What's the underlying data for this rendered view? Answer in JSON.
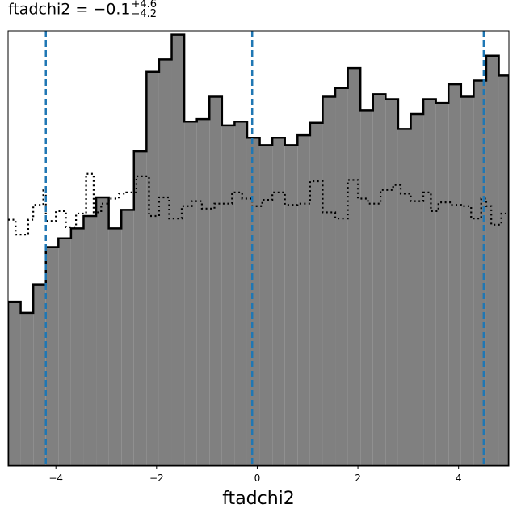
{
  "chart_data": {
    "type": "histogram",
    "title": {
      "prefix": "ftadchi2 = ",
      "value": "−0.1",
      "upper": "+4.6",
      "lower": "−4.2"
    },
    "xlabel": "ftadchi2",
    "xlim": [
      -4.95,
      5.0
    ],
    "ylim": [
      0,
      350
    ],
    "x_ticks": [
      -4,
      -2,
      0,
      2,
      4
    ],
    "x_tick_labels": [
      "−4",
      "−2",
      "0",
      "2",
      "4"
    ],
    "bin_edges": [
      -4.95,
      -4.7,
      -4.45,
      -4.2,
      -3.95,
      -3.7,
      -3.45,
      -3.2,
      -2.95,
      -2.7,
      -2.45,
      -2.2,
      -1.95,
      -1.7,
      -1.45,
      -1.2,
      -0.95,
      -0.7,
      -0.45,
      -0.2,
      0.05,
      0.3,
      0.55,
      0.8,
      1.05,
      1.3,
      1.55,
      1.8,
      2.05,
      2.3,
      2.55,
      2.8,
      3.05,
      3.3,
      3.55,
      3.8,
      4.05,
      4.3,
      4.55,
      4.8,
      5.05
    ],
    "series": [
      {
        "values": [
          132,
          123,
          146,
          176,
          183,
          191,
          201,
          216,
          191,
          206,
          253,
          317,
          327,
          347,
          277,
          279,
          297,
          274,
          277,
          264,
          258,
          264,
          258,
          266,
          276,
          297,
          304,
          320,
          286,
          299,
          295,
          271,
          283,
          295,
          292,
          307,
          297,
          310,
          330,
          314
        ],
        "style": "step-filled",
        "fill": "#808080",
        "edge": "#000000",
        "bins": [
          [
            -4.95,
            -4.7,
            132
          ],
          [
            -4.7,
            -4.45,
            123
          ],
          [
            -4.45,
            -4.2,
            146
          ],
          [
            -4.2,
            -3.95,
            176
          ],
          [
            -3.95,
            -3.7,
            183
          ],
          [
            -3.7,
            -3.45,
            191
          ],
          [
            -3.45,
            -3.2,
            201
          ],
          [
            -3.2,
            -2.95,
            216
          ],
          [
            -2.95,
            -2.7,
            191
          ],
          [
            -2.7,
            -2.45,
            206
          ],
          [
            -2.45,
            -2.2,
            253
          ],
          [
            -2.2,
            -1.95,
            317
          ],
          [
            -1.95,
            -1.7,
            327
          ],
          [
            -1.7,
            -1.45,
            347
          ],
          [
            -1.45,
            -1.2,
            277
          ],
          [
            -1.2,
            -0.95,
            279
          ],
          [
            -0.95,
            -0.7,
            297
          ],
          [
            -0.7,
            -0.45,
            274
          ],
          [
            -0.45,
            -0.2,
            277
          ],
          [
            -0.2,
            0.05,
            264
          ],
          [
            0.05,
            0.3,
            258
          ],
          [
            0.3,
            0.55,
            264
          ],
          [
            0.55,
            0.8,
            258
          ],
          [
            0.8,
            1.05,
            266
          ],
          [
            1.05,
            1.3,
            276
          ],
          [
            1.3,
            1.55,
            297
          ],
          [
            1.55,
            1.8,
            304
          ],
          [
            1.8,
            2.05,
            320
          ],
          [
            2.05,
            2.3,
            286
          ],
          [
            2.3,
            2.55,
            299
          ],
          [
            2.55,
            2.8,
            295
          ],
          [
            2.8,
            3.05,
            271
          ],
          [
            3.05,
            3.3,
            283
          ],
          [
            3.3,
            3.55,
            295
          ],
          [
            3.55,
            3.8,
            292
          ],
          [
            3.8,
            4.05,
            307
          ],
          [
            4.05,
            4.3,
            297
          ],
          [
            4.3,
            4.55,
            310
          ],
          [
            4.55,
            4.8,
            330
          ],
          [
            4.8,
            5.05,
            314
          ]
        ]
      },
      {
        "style": "step-dotted",
        "edge": "#000000",
        "bins": [
          [
            -4.95,
            -4.8,
            198
          ],
          [
            -4.8,
            -4.55,
            186
          ],
          [
            -4.55,
            -4.45,
            198
          ],
          [
            -4.45,
            -4.25,
            210
          ],
          [
            -4.25,
            -4.2,
            222
          ],
          [
            -4.2,
            -4.0,
            197
          ],
          [
            -4.0,
            -3.8,
            205
          ],
          [
            -3.8,
            -3.6,
            192
          ],
          [
            -3.6,
            -3.4,
            203
          ],
          [
            -3.4,
            -3.25,
            235
          ],
          [
            -3.25,
            -3.1,
            204
          ],
          [
            -3.1,
            -2.95,
            211
          ],
          [
            -2.95,
            -2.75,
            215
          ],
          [
            -2.75,
            -2.6,
            219
          ],
          [
            -2.6,
            -2.4,
            220
          ],
          [
            -2.4,
            -2.15,
            233
          ],
          [
            -2.15,
            -1.95,
            201
          ],
          [
            -1.95,
            -1.75,
            216
          ],
          [
            -1.75,
            -1.5,
            199
          ],
          [
            -1.5,
            -1.3,
            209
          ],
          [
            -1.3,
            -1.1,
            213
          ],
          [
            -1.1,
            -0.85,
            207
          ],
          [
            -0.85,
            -0.5,
            211
          ],
          [
            -0.5,
            -0.3,
            220
          ],
          [
            -0.3,
            -0.1,
            215
          ],
          [
            -0.1,
            0.1,
            209
          ],
          [
            0.1,
            0.3,
            214
          ],
          [
            0.3,
            0.55,
            220
          ],
          [
            0.55,
            0.8,
            210
          ],
          [
            0.8,
            1.05,
            211
          ],
          [
            1.05,
            1.3,
            229
          ],
          [
            1.3,
            1.55,
            204
          ],
          [
            1.55,
            1.8,
            199
          ],
          [
            1.8,
            2.0,
            230
          ],
          [
            2.0,
            2.2,
            215
          ],
          [
            2.2,
            2.45,
            211
          ],
          [
            2.45,
            2.7,
            222
          ],
          [
            2.7,
            2.85,
            226
          ],
          [
            2.85,
            3.05,
            219
          ],
          [
            3.05,
            3.3,
            213
          ],
          [
            3.3,
            3.45,
            220
          ],
          [
            3.45,
            3.6,
            205
          ],
          [
            3.6,
            3.85,
            212
          ],
          [
            3.85,
            4.05,
            210
          ],
          [
            4.05,
            4.25,
            209
          ],
          [
            4.25,
            4.45,
            199
          ],
          [
            4.45,
            4.55,
            215
          ],
          [
            4.55,
            4.65,
            209
          ],
          [
            4.65,
            4.85,
            194
          ],
          [
            4.85,
            5.0,
            203
          ]
        ]
      }
    ],
    "vlines": [
      {
        "x": -4.2,
        "color": "#1f77b4",
        "style": "dashed"
      },
      {
        "x": -0.1,
        "color": "#1f77b4",
        "style": "dashed"
      },
      {
        "x": 4.5,
        "color": "#1f77b4",
        "style": "dashed"
      }
    ],
    "grid": false,
    "colors": {
      "fill": "#808080",
      "edge": "#000000",
      "quantile": "#1f77b4"
    }
  }
}
